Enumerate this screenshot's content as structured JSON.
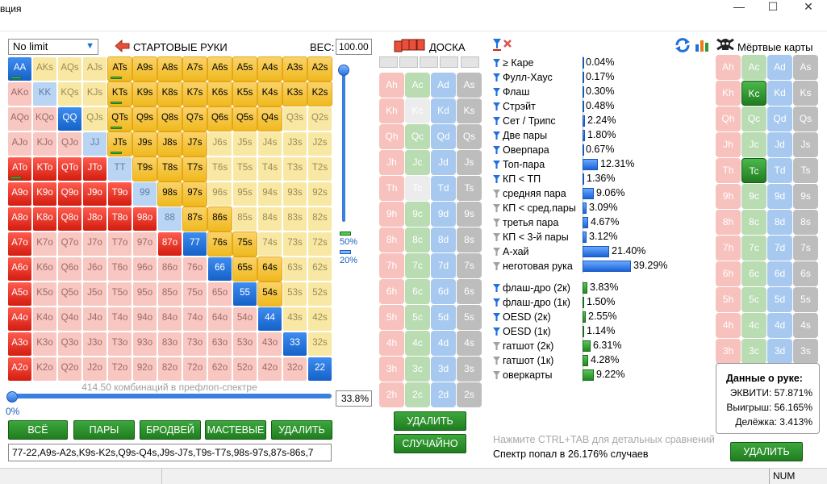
{
  "window": {
    "title": "вция",
    "minimize": "—",
    "maximize": "☐",
    "close": "✕"
  },
  "left": {
    "mode": "No limit",
    "title": "СТАРТОВЫЕ РУКИ",
    "weight_label": "ВЕС:",
    "weight_value": "100.00",
    "slider_top_pct": "50%",
    "slider_bot_pct": "20%",
    "combos_text": "414.50 комбинаций в префлоп-спектре",
    "range_pct": "33.8%",
    "range_zero": "0%",
    "buttons": [
      "ВСЁ",
      "ПАРЫ",
      "БРОДВЕЙ",
      "МАСТЕВЫЕ",
      "УДАЛИТЬ"
    ],
    "range_string": "77-22,A9s-A2s,K9s-K2s,Q9s-Q4s,J9s-J7s,T9s-T7s,98s-97s,87s-86s,7"
  },
  "matrix": [
    [
      "AA",
      "AKs",
      "AQs",
      "AJs",
      "ATs",
      "A9s",
      "A8s",
      "A7s",
      "A6s",
      "A5s",
      "A4s",
      "A3s",
      "A2s"
    ],
    [
      "AKo",
      "KK",
      "KQs",
      "KJs",
      "KTs",
      "K9s",
      "K8s",
      "K7s",
      "K6s",
      "K5s",
      "K4s",
      "K3s",
      "K2s"
    ],
    [
      "AQo",
      "KQo",
      "QQ",
      "QJs",
      "QTs",
      "Q9s",
      "Q8s",
      "Q7s",
      "Q6s",
      "Q5s",
      "Q4s",
      "Q3s",
      "Q2s"
    ],
    [
      "AJo",
      "KJo",
      "QJo",
      "JJ",
      "JTs",
      "J9s",
      "J8s",
      "J7s",
      "J6s",
      "J5s",
      "J4s",
      "J3s",
      "J2s"
    ],
    [
      "ATo",
      "KTo",
      "QTo",
      "JTo",
      "TT",
      "T9s",
      "T8s",
      "T7s",
      "T6s",
      "T5s",
      "T4s",
      "T3s",
      "T2s"
    ],
    [
      "A9o",
      "K9o",
      "Q9o",
      "J9o",
      "T9o",
      "99",
      "98s",
      "97s",
      "96s",
      "95s",
      "94s",
      "93s",
      "92s"
    ],
    [
      "A8o",
      "K8o",
      "Q8o",
      "J8o",
      "T8o",
      "98o",
      "88",
      "87s",
      "86s",
      "85s",
      "84s",
      "83s",
      "82s"
    ],
    [
      "A7o",
      "K7o",
      "Q7o",
      "J7o",
      "T7o",
      "97o",
      "87o",
      "77",
      "76s",
      "75s",
      "74s",
      "73s",
      "72s"
    ],
    [
      "A6o",
      "K6o",
      "Q6o",
      "J6o",
      "T6o",
      "96o",
      "86o",
      "76o",
      "66",
      "65s",
      "64s",
      "63s",
      "62s"
    ],
    [
      "A5o",
      "K5o",
      "Q5o",
      "J5o",
      "T5o",
      "95o",
      "85o",
      "75o",
      "65o",
      "55",
      "54s",
      "53s",
      "52s"
    ],
    [
      "A4o",
      "K4o",
      "Q4o",
      "J4o",
      "T4o",
      "94o",
      "84o",
      "74o",
      "64o",
      "54o",
      "44",
      "43s",
      "42s"
    ],
    [
      "A3o",
      "K3o",
      "Q3o",
      "J3o",
      "T3o",
      "93o",
      "83o",
      "73o",
      "63o",
      "53o",
      "43o",
      "33",
      "32s"
    ],
    [
      "A2o",
      "K2o",
      "Q2o",
      "J2o",
      "T2o",
      "92o",
      "82o",
      "72o",
      "62o",
      "52o",
      "42o",
      "32o",
      "22"
    ]
  ],
  "selected": [
    "AA",
    "QQ",
    "77",
    "66",
    "55",
    "44",
    "33",
    "22",
    "ATs",
    "A9s",
    "A8s",
    "A7s",
    "A6s",
    "A5s",
    "A4s",
    "A3s",
    "A2s",
    "KTs",
    "K9s",
    "K8s",
    "K7s",
    "K6s",
    "K5s",
    "K4s",
    "K3s",
    "K2s",
    "QTs",
    "Q9s",
    "Q8s",
    "Q7s",
    "Q6s",
    "Q5s",
    "Q4s",
    "JTs",
    "J9s",
    "J8s",
    "J7s",
    "T9s",
    "T8s",
    "T7s",
    "98s",
    "97s",
    "87s",
    "86s",
    "76s",
    "75s",
    "65s",
    "64s",
    "54s",
    "ATo",
    "KTo",
    "QTo",
    "JTo",
    "A9o",
    "K9o",
    "Q9o",
    "J9o",
    "T9o",
    "A8o",
    "K8o",
    "Q8o",
    "J8o",
    "T8o",
    "98o",
    "A7o",
    "87o",
    "A6o",
    "A5o",
    "A4o",
    "A3o",
    "A2o"
  ],
  "partial": [
    "AA",
    "ATs",
    "KTs",
    "QTs",
    "JTs",
    "ATo"
  ],
  "board": {
    "title": "ДОСКА",
    "ranks": [
      "A",
      "K",
      "Q",
      "J",
      "T",
      "9",
      "8",
      "7",
      "6",
      "5",
      "4",
      "3",
      "2"
    ],
    "suits": [
      "h",
      "c",
      "d",
      "s"
    ],
    "disabled": [
      "Kc",
      "Tc"
    ],
    "buttons": [
      "УДАЛИТЬ",
      "СЛУЧАЙНО"
    ]
  },
  "stats": {
    "made": [
      {
        "label": "≥ Каре",
        "value": "0.04%",
        "pct": 0.04,
        "f": "b"
      },
      {
        "label": "Фулл-Хаус",
        "value": "0.17%",
        "pct": 0.17,
        "f": "b"
      },
      {
        "label": "Флаш",
        "value": "0.30%",
        "pct": 0.3,
        "f": "b"
      },
      {
        "label": "Стрэйт",
        "value": "0.48%",
        "pct": 0.48,
        "f": "b"
      },
      {
        "label": "Сет / Трипс",
        "value": "2.24%",
        "pct": 2.24,
        "f": "b"
      },
      {
        "label": "Две пары",
        "value": "1.80%",
        "pct": 1.8,
        "f": "b"
      },
      {
        "label": "Оверпара",
        "value": "0.67%",
        "pct": 0.67,
        "f": "b"
      },
      {
        "label": "Топ-пара",
        "value": "12.31%",
        "pct": 12.31,
        "f": "b"
      },
      {
        "label": "КП < ТП",
        "value": "1.36%",
        "pct": 1.36,
        "f": "b"
      },
      {
        "label": "средняя пара",
        "value": "9.06%",
        "pct": 9.06,
        "f": "g"
      },
      {
        "label": "КП < сред.пары",
        "value": "3.09%",
        "pct": 3.09,
        "f": "g"
      },
      {
        "label": "третья пара",
        "value": "4.67%",
        "pct": 4.67,
        "f": "g"
      },
      {
        "label": "КП < 3-й пары",
        "value": "3.12%",
        "pct": 3.12,
        "f": "g"
      },
      {
        "label": "А-хай",
        "value": "21.40%",
        "pct": 21.4,
        "f": "g"
      },
      {
        "label": "неготовая рука",
        "value": "39.29%",
        "pct": 39.29,
        "f": "g"
      }
    ],
    "draws": [
      {
        "label": "флаш-дро (2к)",
        "value": "3.83%",
        "pct": 3.83,
        "f": "b"
      },
      {
        "label": "флаш-дро (1к)",
        "value": "1.50%",
        "pct": 1.5,
        "f": "b"
      },
      {
        "label": "OESD (2к)",
        "value": "2.55%",
        "pct": 2.55,
        "f": "b"
      },
      {
        "label": "OESD (1к)",
        "value": "1.14%",
        "pct": 1.14,
        "f": "b"
      },
      {
        "label": "гатшот (2к)",
        "value": "6.31%",
        "pct": 6.31,
        "f": "g"
      },
      {
        "label": "гатшот (1к)",
        "value": "4.28%",
        "pct": 4.28,
        "f": "g"
      },
      {
        "label": "оверкарты",
        "value": "9.22%",
        "pct": 9.22,
        "f": "g"
      }
    ],
    "hint": "Нажмите CTRL+TAB для детальных сравнений",
    "hit": "Спектр попал в 26.176% случаев"
  },
  "dead": {
    "title": "Мёртвые карты",
    "selected": [
      "Kc",
      "Tc"
    ],
    "info_title": "Данные о руке:",
    "equity": "ЭКВИТИ: 57.871%",
    "win": "Выигрыш: 56.165%",
    "tie": "Делёжка: 3.413%",
    "delete": "УДАЛИТЬ"
  },
  "status": {
    "num": "NUM"
  }
}
